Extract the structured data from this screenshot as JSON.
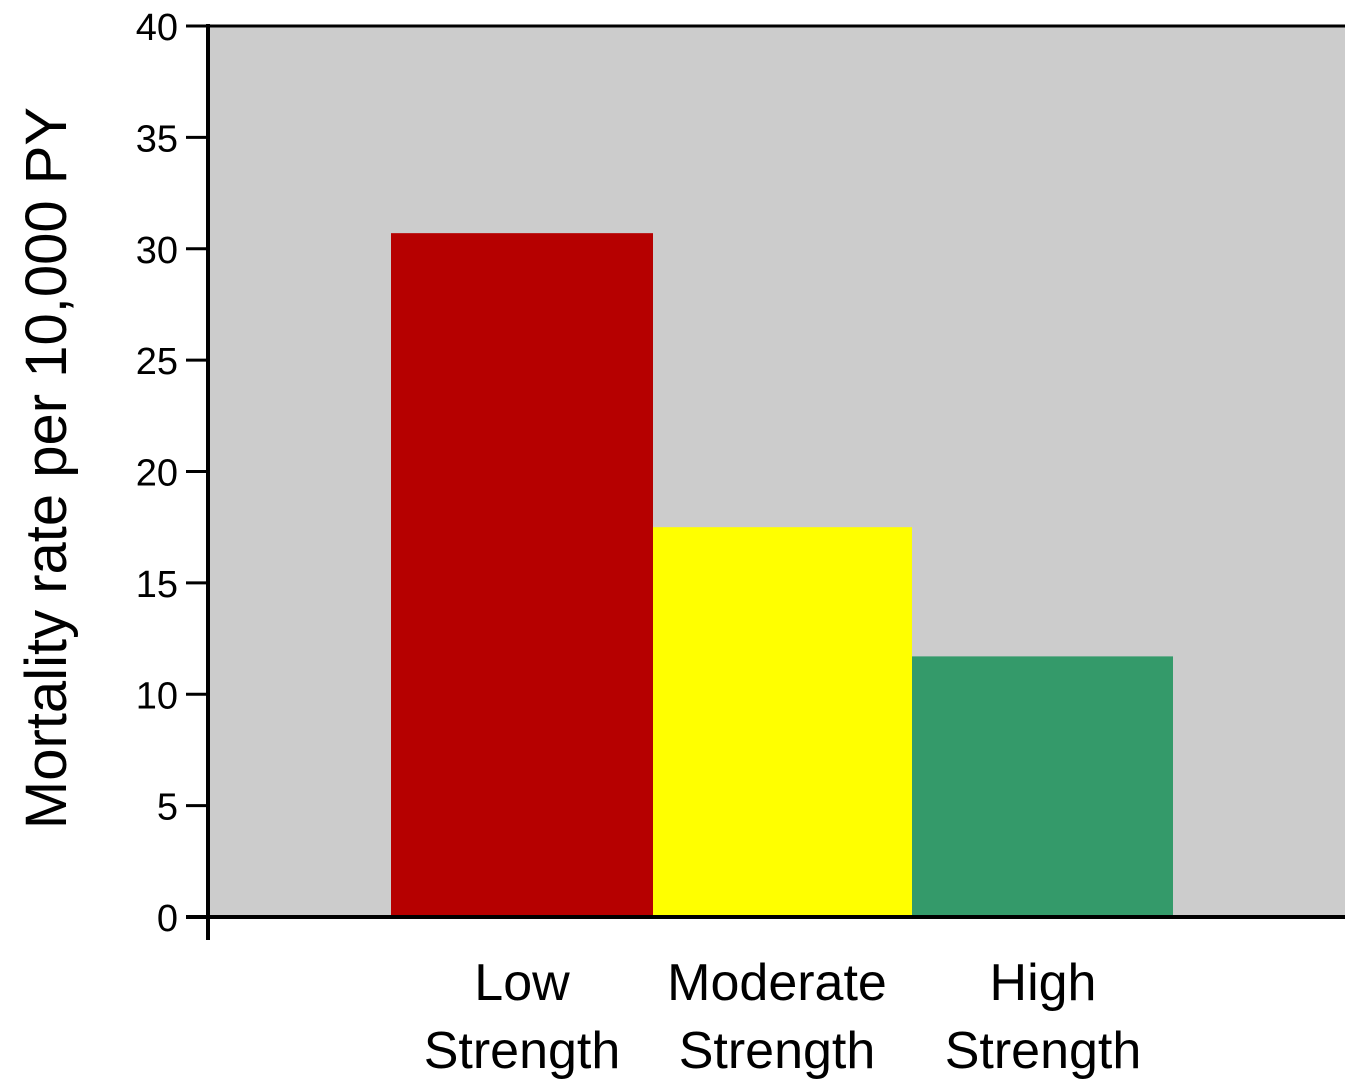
{
  "chart_data": {
    "type": "bar",
    "categories": [
      "Low Strength",
      "Moderate Strength",
      "High Strength"
    ],
    "category_lines": [
      [
        "Low",
        "Strength"
      ],
      [
        "Moderate",
        "Strength"
      ],
      [
        "High",
        "Strength"
      ]
    ],
    "values": [
      30.7,
      17.5,
      11.7
    ],
    "bar_colors": [
      "#b60000",
      "#ffff00",
      "#349a6a"
    ],
    "plot_background": "#cccccc",
    "ylabel": "Mortality rate per 10,000 PY",
    "xlabel": "",
    "ylim": [
      0,
      40
    ],
    "yticks": [
      0,
      5,
      10,
      15,
      20,
      25,
      30,
      35,
      40
    ],
    "ytick_labels": [
      "0",
      "5",
      "10",
      "15",
      "20",
      "25",
      "30",
      "35",
      "40"
    ],
    "grid": false,
    "legend": "none"
  }
}
